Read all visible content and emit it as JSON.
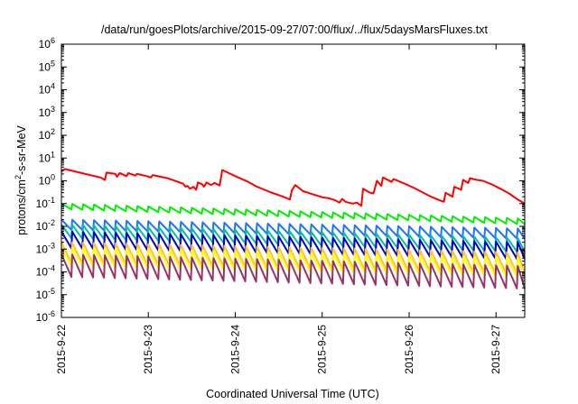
{
  "chart_data": {
    "type": "line",
    "title": "/data/run/goesPlots/archive/2015-09-27/07:00/flux/../flux/5daysMarsFluxes.txt",
    "xlabel": "Coordinated Universal Time (UTC)",
    "ylabel": "protons/cm²-s-sr-MeV",
    "ylabel_parts": {
      "before": "protons/cm",
      "superscript": "2",
      "after": "-s-sr-MeV"
    },
    "yscale": "log",
    "ylim_exponents": [
      -6,
      6
    ],
    "ytick_exponents": [
      -6,
      -5,
      -4,
      -3,
      -2,
      -1,
      0,
      1,
      2,
      3,
      4,
      5,
      6
    ],
    "ytick_base": "10",
    "xlim_days": [
      0,
      5.33
    ],
    "xticks": [
      {
        "day": 0,
        "label": "2015-9-22"
      },
      {
        "day": 1,
        "label": "2015-9-23"
      },
      {
        "day": 2,
        "label": "2015-9-24"
      },
      {
        "day": 3,
        "label": "2015-9-25"
      },
      {
        "day": 4,
        "label": "2015-9-26"
      },
      {
        "day": 5,
        "label": "2015-9-27"
      }
    ],
    "grid": false,
    "legend": "none",
    "series": [
      {
        "color": "#ff0000",
        "style": "step",
        "points": [
          [
            0.0,
            2.5
          ],
          [
            0.04,
            3.3
          ],
          [
            0.3,
            1.9
          ],
          [
            0.45,
            1.4
          ],
          [
            0.5,
            1.1
          ],
          [
            0.52,
            2.3
          ],
          [
            0.62,
            2.0
          ],
          [
            0.64,
            1.5
          ],
          [
            0.67,
            2.2
          ],
          [
            0.75,
            1.6
          ],
          [
            0.77,
            2.2
          ],
          [
            0.85,
            1.7
          ],
          [
            0.87,
            2.0
          ],
          [
            0.98,
            1.6
          ],
          [
            1.03,
            1.4
          ],
          [
            1.05,
            1.8
          ],
          [
            1.22,
            1.3
          ],
          [
            1.4,
            0.75
          ],
          [
            1.43,
            0.55
          ],
          [
            1.45,
            0.6
          ],
          [
            1.48,
            0.45
          ],
          [
            1.52,
            0.55
          ],
          [
            1.55,
            0.4
          ],
          [
            1.57,
            0.85
          ],
          [
            1.62,
            0.7
          ],
          [
            1.64,
            0.55
          ],
          [
            1.67,
            0.85
          ],
          [
            1.72,
            0.65
          ],
          [
            1.76,
            0.8
          ],
          [
            1.82,
            0.62
          ],
          [
            1.85,
            3.0
          ],
          [
            2.0,
            1.6
          ],
          [
            2.15,
            0.9
          ],
          [
            2.25,
            0.55
          ],
          [
            2.4,
            0.32
          ],
          [
            2.55,
            0.2
          ],
          [
            2.63,
            0.15
          ],
          [
            2.65,
            0.38
          ],
          [
            2.69,
            0.65
          ],
          [
            2.78,
            0.35
          ],
          [
            2.9,
            0.25
          ],
          [
            3.0,
            0.19
          ],
          [
            3.08,
            0.17
          ],
          [
            3.15,
            0.14
          ],
          [
            3.2,
            0.11
          ],
          [
            3.23,
            0.16
          ],
          [
            3.27,
            0.12
          ],
          [
            3.35,
            0.1
          ],
          [
            3.4,
            0.11
          ],
          [
            3.45,
            0.08
          ],
          [
            3.47,
            0.45
          ],
          [
            3.55,
            0.3
          ],
          [
            3.59,
            0.28
          ],
          [
            3.63,
            1.0
          ],
          [
            3.68,
            0.6
          ],
          [
            3.7,
            1.4
          ],
          [
            3.8,
            0.9
          ],
          [
            3.82,
            1.2
          ],
          [
            3.93,
            0.8
          ],
          [
            4.05,
            0.5
          ],
          [
            4.15,
            0.32
          ],
          [
            4.25,
            0.2
          ],
          [
            4.35,
            0.14
          ],
          [
            4.4,
            0.12
          ],
          [
            4.42,
            0.3
          ],
          [
            4.5,
            0.2
          ],
          [
            4.52,
            0.55
          ],
          [
            4.6,
            0.4
          ],
          [
            4.62,
            1.1
          ],
          [
            4.68,
            0.8
          ],
          [
            4.7,
            1.3
          ],
          [
            4.78,
            1.1
          ],
          [
            4.85,
            1.0
          ],
          [
            4.95,
            0.7
          ],
          [
            5.05,
            0.45
          ],
          [
            5.15,
            0.28
          ],
          [
            5.25,
            0.15
          ],
          [
            5.33,
            0.1
          ]
        ]
      },
      {
        "color": "#00ee00",
        "style": "sawtooth",
        "peak_start": 0.1,
        "peak_end": 0.022,
        "ratio": 0.55,
        "period": 0.125
      },
      {
        "color": "#1e73ff",
        "style": "sawtooth",
        "peak_start": 0.02,
        "peak_end": 0.008,
        "ratio": 0.35,
        "period": 0.125
      },
      {
        "color": "#00c0a0",
        "style": "sawtooth",
        "peak_start": 0.012,
        "peak_end": 0.003,
        "ratio": 0.25,
        "period": 0.125
      },
      {
        "color": "#0000cc",
        "style": "sawtooth",
        "peak_start": 0.006,
        "peak_end": 0.002,
        "ratio": 0.18,
        "period": 0.125
      },
      {
        "color": "#ffc040",
        "style": "sawtooth",
        "peak_start": 0.002,
        "peak_end": 0.0007,
        "ratio": 0.12,
        "period": 0.125
      },
      {
        "color": "#ffff00",
        "style": "sawtooth",
        "peak_start": 0.0012,
        "peak_end": 0.0004,
        "ratio": 0.15,
        "period": 0.125
      },
      {
        "color": "#993366",
        "style": "sawtooth",
        "peak_start": 0.0006,
        "peak_end": 0.00018,
        "ratio": 0.1,
        "period": 0.125
      }
    ]
  }
}
